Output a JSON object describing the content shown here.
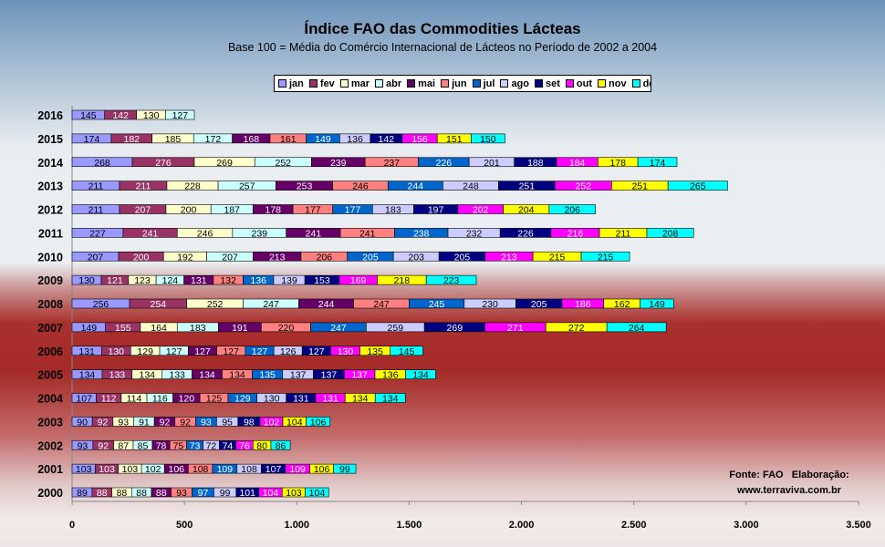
{
  "chart_data": {
    "type": "bar",
    "orientation": "horizontal",
    "stacked": true,
    "title": "Índice FAO das Commodities Lácteas",
    "subtitle": "Base 100 = Média do Comércio Internacional de Lácteos no Período de 2002 a 2004",
    "categories": [
      "2016",
      "2015",
      "2014",
      "2013",
      "2012",
      "2011",
      "2010",
      "2009",
      "2008",
      "2007",
      "2006",
      "2005",
      "2004",
      "2003",
      "2002",
      "2001",
      "2000"
    ],
    "xlim": [
      0,
      3500
    ],
    "x_ticks": [
      0,
      500,
      1000,
      1500,
      2000,
      2500,
      3000,
      3500
    ],
    "x_tick_labels": [
      "0",
      "500",
      "1.000",
      "1.500",
      "2.000",
      "2.500",
      "3.000",
      "3.500"
    ],
    "legend_position": "top",
    "series": [
      {
        "name": "jan",
        "color": "#9999ff",
        "text_color": "#000000",
        "values": [
          145,
          174,
          268,
          211,
          211,
          227,
          207,
          130,
          256,
          149,
          131,
          134,
          107,
          90,
          93,
          103,
          89
        ]
      },
      {
        "name": "fev",
        "color": "#993366",
        "text_color": "#ffffff",
        "values": [
          142,
          182,
          276,
          211,
          207,
          241,
          200,
          121,
          254,
          155,
          130,
          133,
          112,
          92,
          92,
          103,
          88
        ]
      },
      {
        "name": "mar",
        "color": "#ffffcc",
        "text_color": "#000000",
        "values": [
          130,
          185,
          269,
          228,
          200,
          246,
          192,
          123,
          252,
          164,
          129,
          134,
          114,
          93,
          87,
          103,
          88
        ]
      },
      {
        "name": "abr",
        "color": "#ccffff",
        "text_color": "#000000",
        "values": [
          127,
          172,
          252,
          257,
          187,
          239,
          207,
          124,
          247,
          183,
          127,
          133,
          116,
          91,
          85,
          102,
          88
        ]
      },
      {
        "name": "mai",
        "color": "#660066",
        "text_color": "#ffffff",
        "values": [
          null,
          168,
          239,
          253,
          178,
          241,
          213,
          131,
          244,
          191,
          127,
          134,
          120,
          92,
          78,
          106,
          88
        ]
      },
      {
        "name": "jun",
        "color": "#ff8080",
        "text_color": "#000000",
        "values": [
          null,
          161,
          237,
          246,
          177,
          241,
          206,
          132,
          247,
          220,
          127,
          134,
          125,
          92,
          75,
          108,
          93
        ]
      },
      {
        "name": "jul",
        "color": "#0066cc",
        "text_color": "#ffffff",
        "values": [
          null,
          149,
          226,
          244,
          177,
          238,
          205,
          136,
          245,
          247,
          127,
          135,
          129,
          93,
          73,
          109,
          97
        ]
      },
      {
        "name": "ago",
        "color": "#ccccff",
        "text_color": "#000000",
        "values": [
          null,
          136,
          201,
          248,
          183,
          232,
          203,
          139,
          230,
          259,
          126,
          137,
          130,
          95,
          72,
          108,
          99
        ]
      },
      {
        "name": "set",
        "color": "#000080",
        "text_color": "#ffffff",
        "values": [
          null,
          142,
          188,
          251,
          197,
          226,
          205,
          153,
          205,
          269,
          127,
          137,
          131,
          98,
          74,
          107,
          101
        ]
      },
      {
        "name": "out",
        "color": "#ff00ff",
        "text_color": "#ffffff",
        "values": [
          null,
          156,
          184,
          252,
          202,
          216,
          213,
          169,
          186,
          271,
          130,
          137,
          131,
          102,
          76,
          109,
          104
        ]
      },
      {
        "name": "nov",
        "color": "#ffff00",
        "text_color": "#000000",
        "values": [
          null,
          151,
          178,
          251,
          204,
          211,
          215,
          218,
          162,
          272,
          135,
          136,
          134,
          104,
          80,
          106,
          103
        ]
      },
      {
        "name": "dez",
        "color": "#00ffff",
        "text_color": "#000000",
        "values": [
          null,
          150,
          174,
          265,
          206,
          208,
          215,
          223,
          149,
          264,
          145,
          134,
          134,
          106,
          86,
          99,
          104
        ]
      }
    ]
  },
  "source_note": {
    "line1": "Fonte: FAO   Elaboração:",
    "line2": "www.terraviva.com.br"
  }
}
